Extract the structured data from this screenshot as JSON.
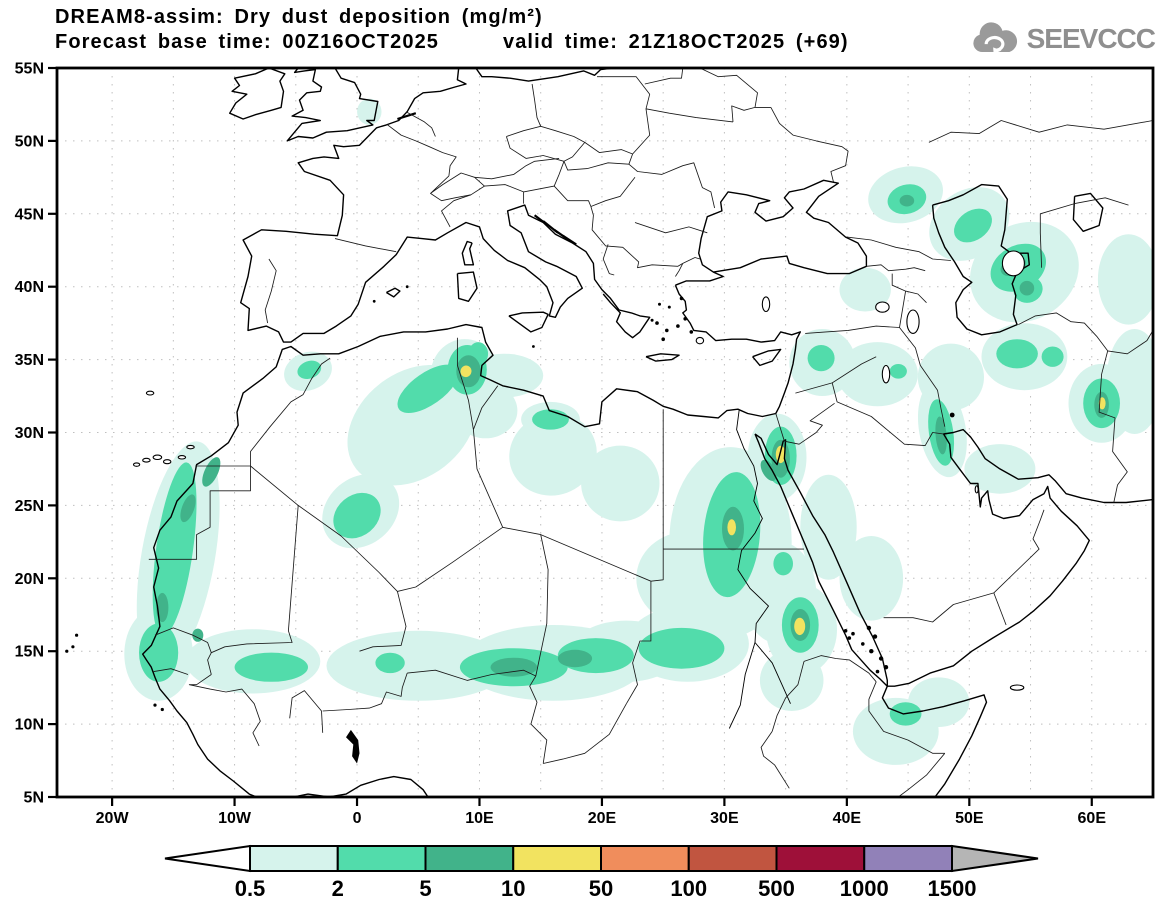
{
  "header": {
    "title_line1": "DREAM8-assim: Dry dust deposition (mg/m²)",
    "title_line2": "Forecast base time: 00Z16OCT2025      valid time: 21Z18OCT2025 (+69)",
    "logo_text": "SEEVCCC"
  },
  "map": {
    "lat_ticks": [
      {
        "label": "55N",
        "value": 55
      },
      {
        "label": "50N",
        "value": 50
      },
      {
        "label": "45N",
        "value": 45
      },
      {
        "label": "40N",
        "value": 40
      },
      {
        "label": "35N",
        "value": 35
      },
      {
        "label": "30N",
        "value": 30
      },
      {
        "label": "25N",
        "value": 25
      },
      {
        "label": "20N",
        "value": 20
      },
      {
        "label": "15N",
        "value": 15
      },
      {
        "label": "10N",
        "value": 10
      },
      {
        "label": "5N",
        "value": 5
      }
    ],
    "lon_ticks": [
      {
        "label": "20W",
        "value": -20
      },
      {
        "label": "10W",
        "value": -10
      },
      {
        "label": "0",
        "value": 0
      },
      {
        "label": "10E",
        "value": 10
      },
      {
        "label": "20E",
        "value": 20
      },
      {
        "label": "30E",
        "value": 30
      },
      {
        "label": "40E",
        "value": 40
      },
      {
        "label": "50E",
        "value": 50
      },
      {
        "label": "60E",
        "value": 60
      }
    ]
  },
  "colorbar": {
    "labels": [
      "0.5",
      "2",
      "5",
      "10",
      "50",
      "100",
      "500",
      "1000",
      "1500"
    ],
    "below_min_color": "#ffffff",
    "above_max_color": "#b5b5b5"
  },
  "chart_data": {
    "type": "heatmap",
    "title": "DREAM8-assim: Dry dust deposition (mg/m²)",
    "model": "DREAM8-assim",
    "variable": "Dry dust deposition",
    "units": "mg/m²",
    "forecast_base_time": "00Z16OCT2025",
    "valid_time": "21Z18OCT2025 (+69)",
    "lead_hours": 69,
    "domain": {
      "lon_range": [
        -24.5,
        65
      ],
      "lat_range": [
        5,
        55
      ]
    },
    "grid_spacing_deg": 5,
    "gridlines": "dotted",
    "levels": [
      0.5,
      2,
      5,
      10,
      50,
      100,
      500,
      1000,
      1500
    ],
    "palette": [
      "#d6f3ec",
      "#52dcab",
      "#41b38a",
      "#f2e360",
      "#f08d5c",
      "#c15540",
      "#9e1039",
      "#9181b8"
    ],
    "level_values": [
      0.5,
      2,
      5,
      10
    ],
    "region_format": "[lon_center, lat_center, rx_deg, ry_deg, rotation_deg, level_index]",
    "regions": [
      [
        -14.6,
        21.5,
        3.0,
        8.0,
        10,
        0
      ],
      [
        -16.2,
        14.8,
        2.8,
        3.2,
        0,
        0
      ],
      [
        -8.5,
        14.3,
        5.5,
        2.2,
        0,
        0
      ],
      [
        -4.0,
        34.2,
        2.0,
        1.3,
        -20,
        0
      ],
      [
        4.5,
        30.5,
        5.8,
        3.6,
        -38,
        0
      ],
      [
        0.3,
        24.6,
        3.4,
        2.3,
        -40,
        0
      ],
      [
        8.8,
        33.9,
        2.8,
        2.5,
        0,
        0
      ],
      [
        12.0,
        33.9,
        3.2,
        1.5,
        0,
        0
      ],
      [
        10.5,
        31.5,
        2.6,
        1.9,
        0,
        0
      ],
      [
        16.0,
        28.5,
        3.6,
        2.8,
        -20,
        0
      ],
      [
        15.8,
        30.9,
        2.4,
        1.2,
        0,
        0
      ],
      [
        21.5,
        26.5,
        3.2,
        2.6,
        0,
        0
      ],
      [
        5.0,
        14.0,
        7.5,
        2.4,
        0,
        0
      ],
      [
        16.0,
        14.2,
        7.5,
        2.6,
        0,
        0
      ],
      [
        22.0,
        15.0,
        4.5,
        2.1,
        0,
        0
      ],
      [
        27.0,
        15.5,
        5.0,
        2.6,
        0,
        0
      ],
      [
        30.5,
        22.5,
        5.0,
        6.5,
        0,
        0
      ],
      [
        27.0,
        20.0,
        4.2,
        3.2,
        0,
        0
      ],
      [
        34.5,
        19.0,
        3.0,
        3.5,
        0,
        0
      ],
      [
        36.3,
        16.5,
        2.9,
        3.1,
        0,
        0
      ],
      [
        34.3,
        28.3,
        2.4,
        3.0,
        0,
        0
      ],
      [
        38.5,
        23.5,
        2.3,
        3.6,
        0,
        0
      ],
      [
        42.0,
        20.0,
        2.6,
        2.9,
        0,
        0
      ],
      [
        35.5,
        13.0,
        2.6,
        2.1,
        0,
        0
      ],
      [
        38.0,
        34.8,
        2.7,
        2.3,
        0,
        0
      ],
      [
        42.5,
        34.0,
        3.3,
        2.2,
        0,
        0
      ],
      [
        47.8,
        30.2,
        1.9,
        3.3,
        -10,
        0
      ],
      [
        52.5,
        27.5,
        2.9,
        1.7,
        0,
        0
      ],
      [
        48.5,
        33.8,
        2.7,
        2.3,
        0,
        0
      ],
      [
        54.5,
        35.2,
        3.5,
        2.3,
        0,
        0
      ],
      [
        60.8,
        32.0,
        2.7,
        2.7,
        0,
        0
      ],
      [
        63.5,
        33.5,
        2.3,
        3.6,
        0,
        0
      ],
      [
        63.0,
        40.5,
        2.5,
        3.1,
        0,
        0
      ],
      [
        54.5,
        41.0,
        4.6,
        3.3,
        -30,
        0
      ],
      [
        50.0,
        44.3,
        3.5,
        2.3,
        -35,
        0
      ],
      [
        44.8,
        46.3,
        3.1,
        1.9,
        -15,
        0
      ],
      [
        41.5,
        39.8,
        2.1,
        1.5,
        0,
        0
      ],
      [
        44.0,
        9.5,
        3.5,
        2.3,
        0,
        0
      ],
      [
        47.5,
        11.5,
        2.5,
        1.7,
        0,
        0
      ],
      [
        1.0,
        52.0,
        1.0,
        0.9,
        0,
        0
      ],
      [
        -14.9,
        22.0,
        1.5,
        6.0,
        8,
        1
      ],
      [
        -16.2,
        14.9,
        1.6,
        2.0,
        0,
        1
      ],
      [
        -7.0,
        13.9,
        3.0,
        1.0,
        0,
        1
      ],
      [
        0.0,
        24.3,
        2.1,
        1.4,
        -40,
        1
      ],
      [
        -3.9,
        34.3,
        1.0,
        0.6,
        -20,
        1
      ],
      [
        5.8,
        33.0,
        2.9,
        1.1,
        -35,
        1
      ],
      [
        9.0,
        34.3,
        1.6,
        1.7,
        0,
        1
      ],
      [
        9.9,
        35.4,
        0.8,
        0.8,
        0,
        1
      ],
      [
        15.8,
        30.9,
        1.5,
        0.7,
        0,
        1
      ],
      [
        12.8,
        13.9,
        4.4,
        1.3,
        0,
        1
      ],
      [
        19.5,
        14.7,
        3.1,
        1.2,
        0,
        1
      ],
      [
        2.7,
        14.2,
        1.2,
        0.7,
        0,
        1
      ],
      [
        26.5,
        15.2,
        3.5,
        1.4,
        0,
        1
      ],
      [
        30.6,
        23.0,
        2.3,
        4.3,
        5,
        1
      ],
      [
        34.6,
        28.4,
        1.3,
        2.0,
        0,
        1
      ],
      [
        36.2,
        16.8,
        1.5,
        1.9,
        0,
        1
      ],
      [
        34.8,
        21.0,
        0.8,
        0.8,
        0,
        1
      ],
      [
        37.9,
        35.1,
        1.1,
        0.9,
        0,
        1
      ],
      [
        47.7,
        30.0,
        1.0,
        2.3,
        -8,
        1
      ],
      [
        44.2,
        34.2,
        0.7,
        0.5,
        0,
        1
      ],
      [
        53.9,
        35.4,
        1.7,
        1.0,
        0,
        1
      ],
      [
        56.8,
        35.2,
        0.9,
        0.7,
        0,
        1
      ],
      [
        60.8,
        32.0,
        1.5,
        1.7,
        0,
        1
      ],
      [
        54.0,
        41.3,
        2.4,
        1.5,
        -30,
        1
      ],
      [
        54.8,
        39.8,
        1.2,
        0.9,
        -20,
        1
      ],
      [
        50.3,
        44.2,
        1.7,
        1.0,
        -35,
        1
      ],
      [
        44.9,
        46.0,
        1.6,
        1.0,
        -15,
        1
      ],
      [
        44.8,
        10.7,
        1.3,
        0.8,
        0,
        1
      ],
      [
        9.1,
        34.2,
        1.0,
        1.1,
        0,
        2
      ],
      [
        -11.9,
        27.3,
        0.55,
        1.1,
        25,
        2
      ],
      [
        -13.8,
        24.8,
        0.5,
        1.0,
        20,
        2
      ],
      [
        -15.9,
        18.0,
        0.5,
        1.0,
        0,
        2
      ],
      [
        -13.0,
        16.1,
        0.45,
        0.45,
        0,
        2
      ],
      [
        12.8,
        13.9,
        1.9,
        0.65,
        0,
        2
      ],
      [
        17.8,
        14.5,
        1.4,
        0.6,
        0,
        2
      ],
      [
        30.7,
        23.4,
        0.9,
        1.5,
        0,
        2
      ],
      [
        34.6,
        28.2,
        0.75,
        1.3,
        0,
        2
      ],
      [
        33.6,
        27.4,
        0.5,
        0.8,
        -30,
        2
      ],
      [
        36.2,
        16.8,
        0.8,
        1.1,
        0,
        2
      ],
      [
        60.8,
        31.9,
        0.6,
        0.9,
        0,
        2
      ],
      [
        53.6,
        41.4,
        1.1,
        0.6,
        -25,
        2
      ],
      [
        54.7,
        39.9,
        0.6,
        0.5,
        0,
        2
      ],
      [
        44.9,
        45.9,
        0.6,
        0.4,
        0,
        2
      ],
      [
        47.7,
        29.8,
        0.45,
        1.3,
        -5,
        2
      ],
      [
        8.9,
        34.2,
        0.45,
        0.4,
        20,
        3
      ],
      [
        30.6,
        23.5,
        0.35,
        0.55,
        0,
        3
      ],
      [
        34.6,
        28.5,
        0.4,
        0.6,
        0,
        3
      ],
      [
        36.15,
        16.7,
        0.45,
        0.6,
        0,
        3
      ],
      [
        60.85,
        32.0,
        0.28,
        0.42,
        0,
        3
      ]
    ]
  }
}
